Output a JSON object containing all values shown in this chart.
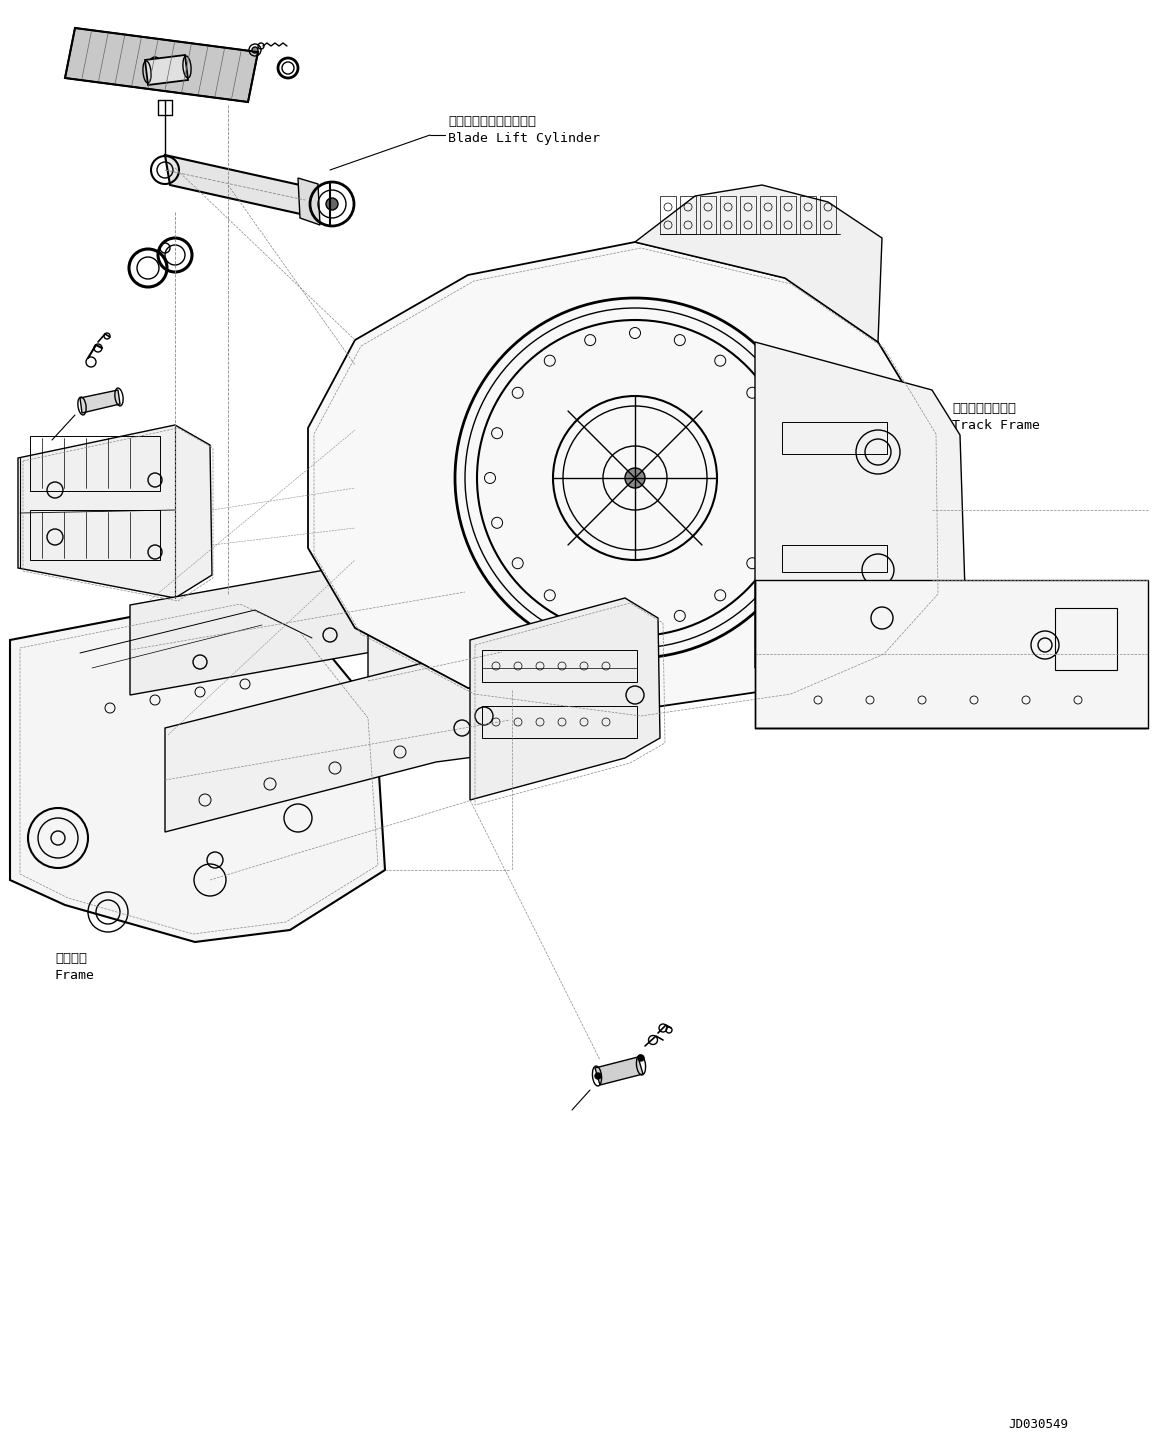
{
  "bg_color": "#ffffff",
  "line_color": "#000000",
  "line_width": 1.0,
  "dashed_line_color": "#888888",
  "labels": {
    "blade_lift_jp": "ブレードリフトシリンダ",
    "blade_lift_en": "Blade Lift Cylinder",
    "track_frame_jp": "トラックフレーム",
    "track_frame_en": "Track Frame",
    "frame_jp": "フレーム",
    "frame_en": "Frame",
    "part_number": "JD030549"
  },
  "font_size_label": 9.5,
  "font_size_part": 9.0
}
